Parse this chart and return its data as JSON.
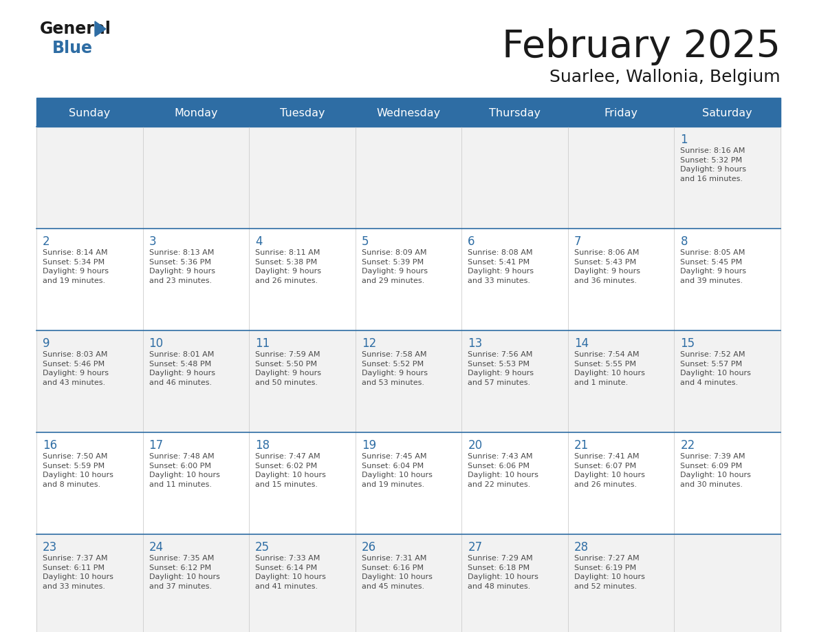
{
  "title": "February 2025",
  "subtitle": "Suarlee, Wallonia, Belgium",
  "days_of_week": [
    "Sunday",
    "Monday",
    "Tuesday",
    "Wednesday",
    "Thursday",
    "Friday",
    "Saturday"
  ],
  "header_bg": "#2E6DA4",
  "header_text": "#FFFFFF",
  "cell_bg_odd": "#F2F2F2",
  "cell_bg_even": "#FFFFFF",
  "day_number_color": "#2E6DA4",
  "text_color": "#4a4a4a",
  "line_color": "#2E6DA4",
  "title_color": "#1a1a1a",
  "logo_general_color": "#1a1a1a",
  "logo_blue_color": "#2E6DA4",
  "calendar_data": [
    [
      {
        "day": null,
        "info": ""
      },
      {
        "day": null,
        "info": ""
      },
      {
        "day": null,
        "info": ""
      },
      {
        "day": null,
        "info": ""
      },
      {
        "day": null,
        "info": ""
      },
      {
        "day": null,
        "info": ""
      },
      {
        "day": 1,
        "info": "Sunrise: 8:16 AM\nSunset: 5:32 PM\nDaylight: 9 hours\nand 16 minutes."
      }
    ],
    [
      {
        "day": 2,
        "info": "Sunrise: 8:14 AM\nSunset: 5:34 PM\nDaylight: 9 hours\nand 19 minutes."
      },
      {
        "day": 3,
        "info": "Sunrise: 8:13 AM\nSunset: 5:36 PM\nDaylight: 9 hours\nand 23 minutes."
      },
      {
        "day": 4,
        "info": "Sunrise: 8:11 AM\nSunset: 5:38 PM\nDaylight: 9 hours\nand 26 minutes."
      },
      {
        "day": 5,
        "info": "Sunrise: 8:09 AM\nSunset: 5:39 PM\nDaylight: 9 hours\nand 29 minutes."
      },
      {
        "day": 6,
        "info": "Sunrise: 8:08 AM\nSunset: 5:41 PM\nDaylight: 9 hours\nand 33 minutes."
      },
      {
        "day": 7,
        "info": "Sunrise: 8:06 AM\nSunset: 5:43 PM\nDaylight: 9 hours\nand 36 minutes."
      },
      {
        "day": 8,
        "info": "Sunrise: 8:05 AM\nSunset: 5:45 PM\nDaylight: 9 hours\nand 39 minutes."
      }
    ],
    [
      {
        "day": 9,
        "info": "Sunrise: 8:03 AM\nSunset: 5:46 PM\nDaylight: 9 hours\nand 43 minutes."
      },
      {
        "day": 10,
        "info": "Sunrise: 8:01 AM\nSunset: 5:48 PM\nDaylight: 9 hours\nand 46 minutes."
      },
      {
        "day": 11,
        "info": "Sunrise: 7:59 AM\nSunset: 5:50 PM\nDaylight: 9 hours\nand 50 minutes."
      },
      {
        "day": 12,
        "info": "Sunrise: 7:58 AM\nSunset: 5:52 PM\nDaylight: 9 hours\nand 53 minutes."
      },
      {
        "day": 13,
        "info": "Sunrise: 7:56 AM\nSunset: 5:53 PM\nDaylight: 9 hours\nand 57 minutes."
      },
      {
        "day": 14,
        "info": "Sunrise: 7:54 AM\nSunset: 5:55 PM\nDaylight: 10 hours\nand 1 minute."
      },
      {
        "day": 15,
        "info": "Sunrise: 7:52 AM\nSunset: 5:57 PM\nDaylight: 10 hours\nand 4 minutes."
      }
    ],
    [
      {
        "day": 16,
        "info": "Sunrise: 7:50 AM\nSunset: 5:59 PM\nDaylight: 10 hours\nand 8 minutes."
      },
      {
        "day": 17,
        "info": "Sunrise: 7:48 AM\nSunset: 6:00 PM\nDaylight: 10 hours\nand 11 minutes."
      },
      {
        "day": 18,
        "info": "Sunrise: 7:47 AM\nSunset: 6:02 PM\nDaylight: 10 hours\nand 15 minutes."
      },
      {
        "day": 19,
        "info": "Sunrise: 7:45 AM\nSunset: 6:04 PM\nDaylight: 10 hours\nand 19 minutes."
      },
      {
        "day": 20,
        "info": "Sunrise: 7:43 AM\nSunset: 6:06 PM\nDaylight: 10 hours\nand 22 minutes."
      },
      {
        "day": 21,
        "info": "Sunrise: 7:41 AM\nSunset: 6:07 PM\nDaylight: 10 hours\nand 26 minutes."
      },
      {
        "day": 22,
        "info": "Sunrise: 7:39 AM\nSunset: 6:09 PM\nDaylight: 10 hours\nand 30 minutes."
      }
    ],
    [
      {
        "day": 23,
        "info": "Sunrise: 7:37 AM\nSunset: 6:11 PM\nDaylight: 10 hours\nand 33 minutes."
      },
      {
        "day": 24,
        "info": "Sunrise: 7:35 AM\nSunset: 6:12 PM\nDaylight: 10 hours\nand 37 minutes."
      },
      {
        "day": 25,
        "info": "Sunrise: 7:33 AM\nSunset: 6:14 PM\nDaylight: 10 hours\nand 41 minutes."
      },
      {
        "day": 26,
        "info": "Sunrise: 7:31 AM\nSunset: 6:16 PM\nDaylight: 10 hours\nand 45 minutes."
      },
      {
        "day": 27,
        "info": "Sunrise: 7:29 AM\nSunset: 6:18 PM\nDaylight: 10 hours\nand 48 minutes."
      },
      {
        "day": 28,
        "info": "Sunrise: 7:27 AM\nSunset: 6:19 PM\nDaylight: 10 hours\nand 52 minutes."
      },
      {
        "day": null,
        "info": ""
      }
    ]
  ],
  "fig_width": 11.88,
  "fig_height": 9.18,
  "dpi": 100
}
